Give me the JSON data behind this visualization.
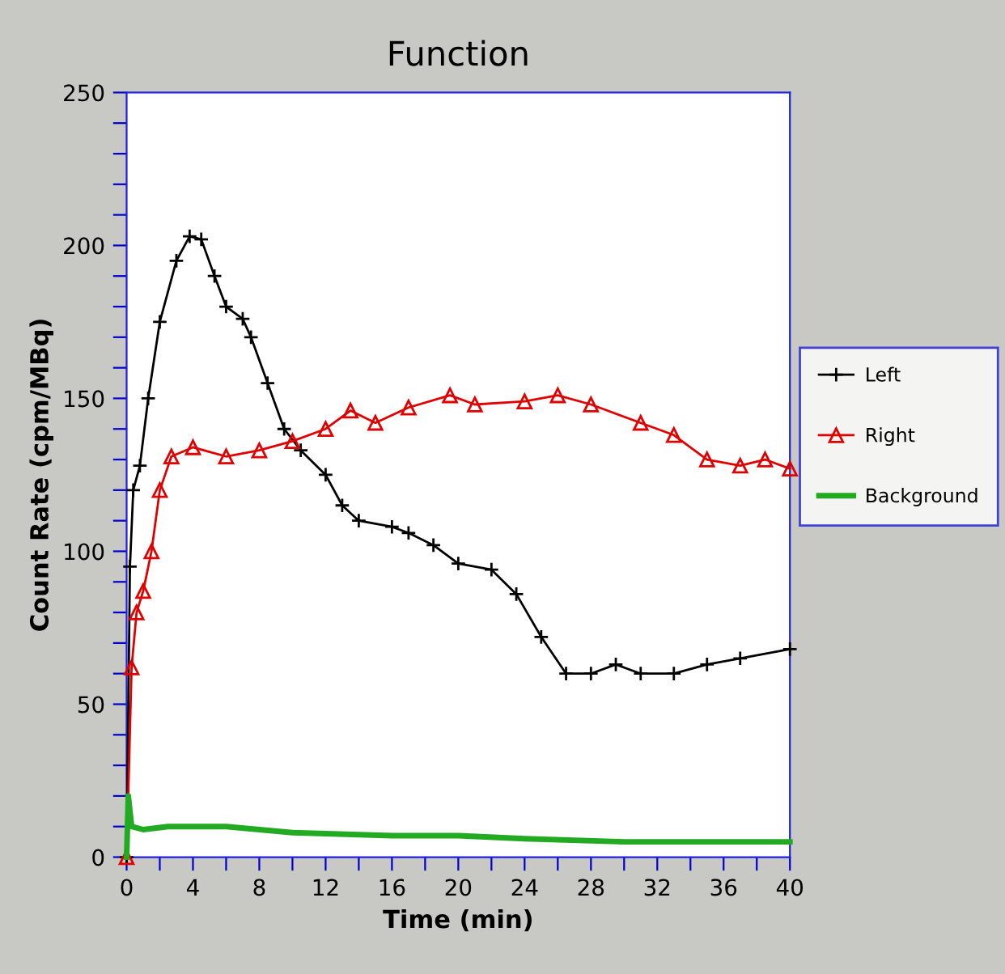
{
  "chart_data": {
    "type": "line",
    "title": "Function",
    "xlabel": "Time (min)",
    "ylabel": "Count Rate (cpm/MBq)",
    "xlim": [
      0,
      40
    ],
    "ylim": [
      0,
      250
    ],
    "xticks": [
      0,
      {
        "value": 2,
        "label": null
      },
      4,
      {
        "value": 6,
        "label": null
      },
      8,
      {
        "value": 10,
        "label": null
      },
      12,
      {
        "value": 14,
        "label": null
      },
      16,
      {
        "value": 18,
        "label": null
      },
      20,
      {
        "value": 22,
        "label": null
      },
      24,
      {
        "value": 26,
        "label": null
      },
      28,
      {
        "value": 30,
        "label": null
      },
      32,
      {
        "value": 34,
        "label": null
      },
      36,
      {
        "value": 38,
        "label": null
      },
      40
    ],
    "yticks": [
      0,
      {
        "value": 10,
        "label": null
      },
      {
        "value": 20,
        "label": null
      },
      {
        "value": 30,
        "label": null
      },
      {
        "value": 40,
        "label": null
      },
      50,
      {
        "value": 60,
        "label": null
      },
      {
        "value": 70,
        "label": null
      },
      {
        "value": 80,
        "label": null
      },
      {
        "value": 90,
        "label": null
      },
      100,
      {
        "value": 110,
        "label": null
      },
      {
        "value": 120,
        "label": null
      },
      {
        "value": 130,
        "label": null
      },
      {
        "value": 140,
        "label": null
      },
      150,
      {
        "value": 160,
        "label": null
      },
      {
        "value": 170,
        "label": null
      },
      {
        "value": 180,
        "label": null
      },
      {
        "value": 190,
        "label": null
      },
      200,
      {
        "value": 210,
        "label": null
      },
      {
        "value": 220,
        "label": null
      },
      {
        "value": 230,
        "label": null
      },
      {
        "value": 240,
        "label": null
      },
      250
    ],
    "grid": false,
    "legend": "right",
    "line_style": "solid",
    "series": [
      {
        "name": "Left",
        "color": "#000000",
        "marker": "cross",
        "x": [
          0,
          0.2,
          0.4,
          0.8,
          1.3,
          2,
          3,
          3.8,
          4.5,
          5.3,
          6,
          7,
          7.5,
          8.5,
          9.5,
          10.5,
          12,
          13,
          14,
          16,
          17,
          18.5,
          20,
          22,
          23.5,
          25,
          26.5,
          28,
          29.5,
          31,
          33,
          35,
          37,
          40
        ],
        "values": [
          0,
          95,
          120,
          128,
          150,
          175,
          195,
          203,
          202,
          190,
          180,
          176,
          170,
          155,
          140,
          133,
          125,
          115,
          110,
          108,
          106,
          102,
          96,
          94,
          86,
          72,
          60,
          60,
          63,
          60,
          60,
          63,
          65,
          68
        ]
      },
      {
        "name": "Right",
        "color": "#e00000",
        "marker": "triangle",
        "x": [
          0,
          0.3,
          0.6,
          1,
          1.5,
          2,
          2.7,
          4,
          6,
          8,
          10,
          12,
          13.5,
          15,
          17,
          19.5,
          21,
          24,
          26,
          28,
          31,
          33,
          35,
          37,
          38.5,
          40
        ],
        "values": [
          0,
          62,
          80,
          87,
          100,
          120,
          131,
          134,
          131,
          133,
          136,
          140,
          146,
          142,
          147,
          151,
          148,
          149,
          151,
          148,
          142,
          138,
          130,
          128,
          130,
          127
        ]
      },
      {
        "name": "Background",
        "color": "#22aa22",
        "marker": "none",
        "x": [
          0,
          0.1,
          0.3,
          1,
          2.5,
          6,
          10,
          16,
          20,
          24,
          30,
          40
        ],
        "values": [
          0,
          20,
          10,
          9,
          10,
          10,
          8,
          7,
          7,
          6,
          5,
          5
        ]
      }
    ]
  }
}
